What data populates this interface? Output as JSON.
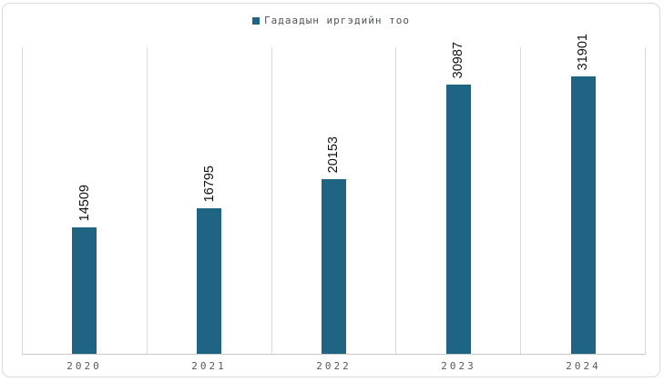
{
  "legend": {
    "label": "Гадаадын иргэдийн тоо"
  },
  "colors": {
    "bar": "#1f6583",
    "legend_marker": "#1f6583",
    "gridline": "#d9d9d9",
    "axis_line": "#c9c9c9",
    "axis_label_text": "#595959",
    "data_label_text": "#111111",
    "legend_text": "#4d5257",
    "frame_border": "#d9d9d9",
    "background": "#ffffff"
  },
  "chart_data": {
    "type": "bar",
    "title": "",
    "xlabel": "",
    "ylabel": "",
    "categories": [
      "2020",
      "2021",
      "2022",
      "2023",
      "2024"
    ],
    "series": [
      {
        "name": "Гадаадын иргэдийн тоо",
        "values": [
          14509,
          16795,
          20153,
          30987,
          31901
        ]
      }
    ],
    "ylim": [
      0,
      35300
    ],
    "grid": "vertical category separators only, no horizontal gridlines, y-axis hidden",
    "legend_position": "top-center",
    "data_labels": {
      "visible": true,
      "rotation_deg": 270,
      "position": "above-bar"
    }
  }
}
